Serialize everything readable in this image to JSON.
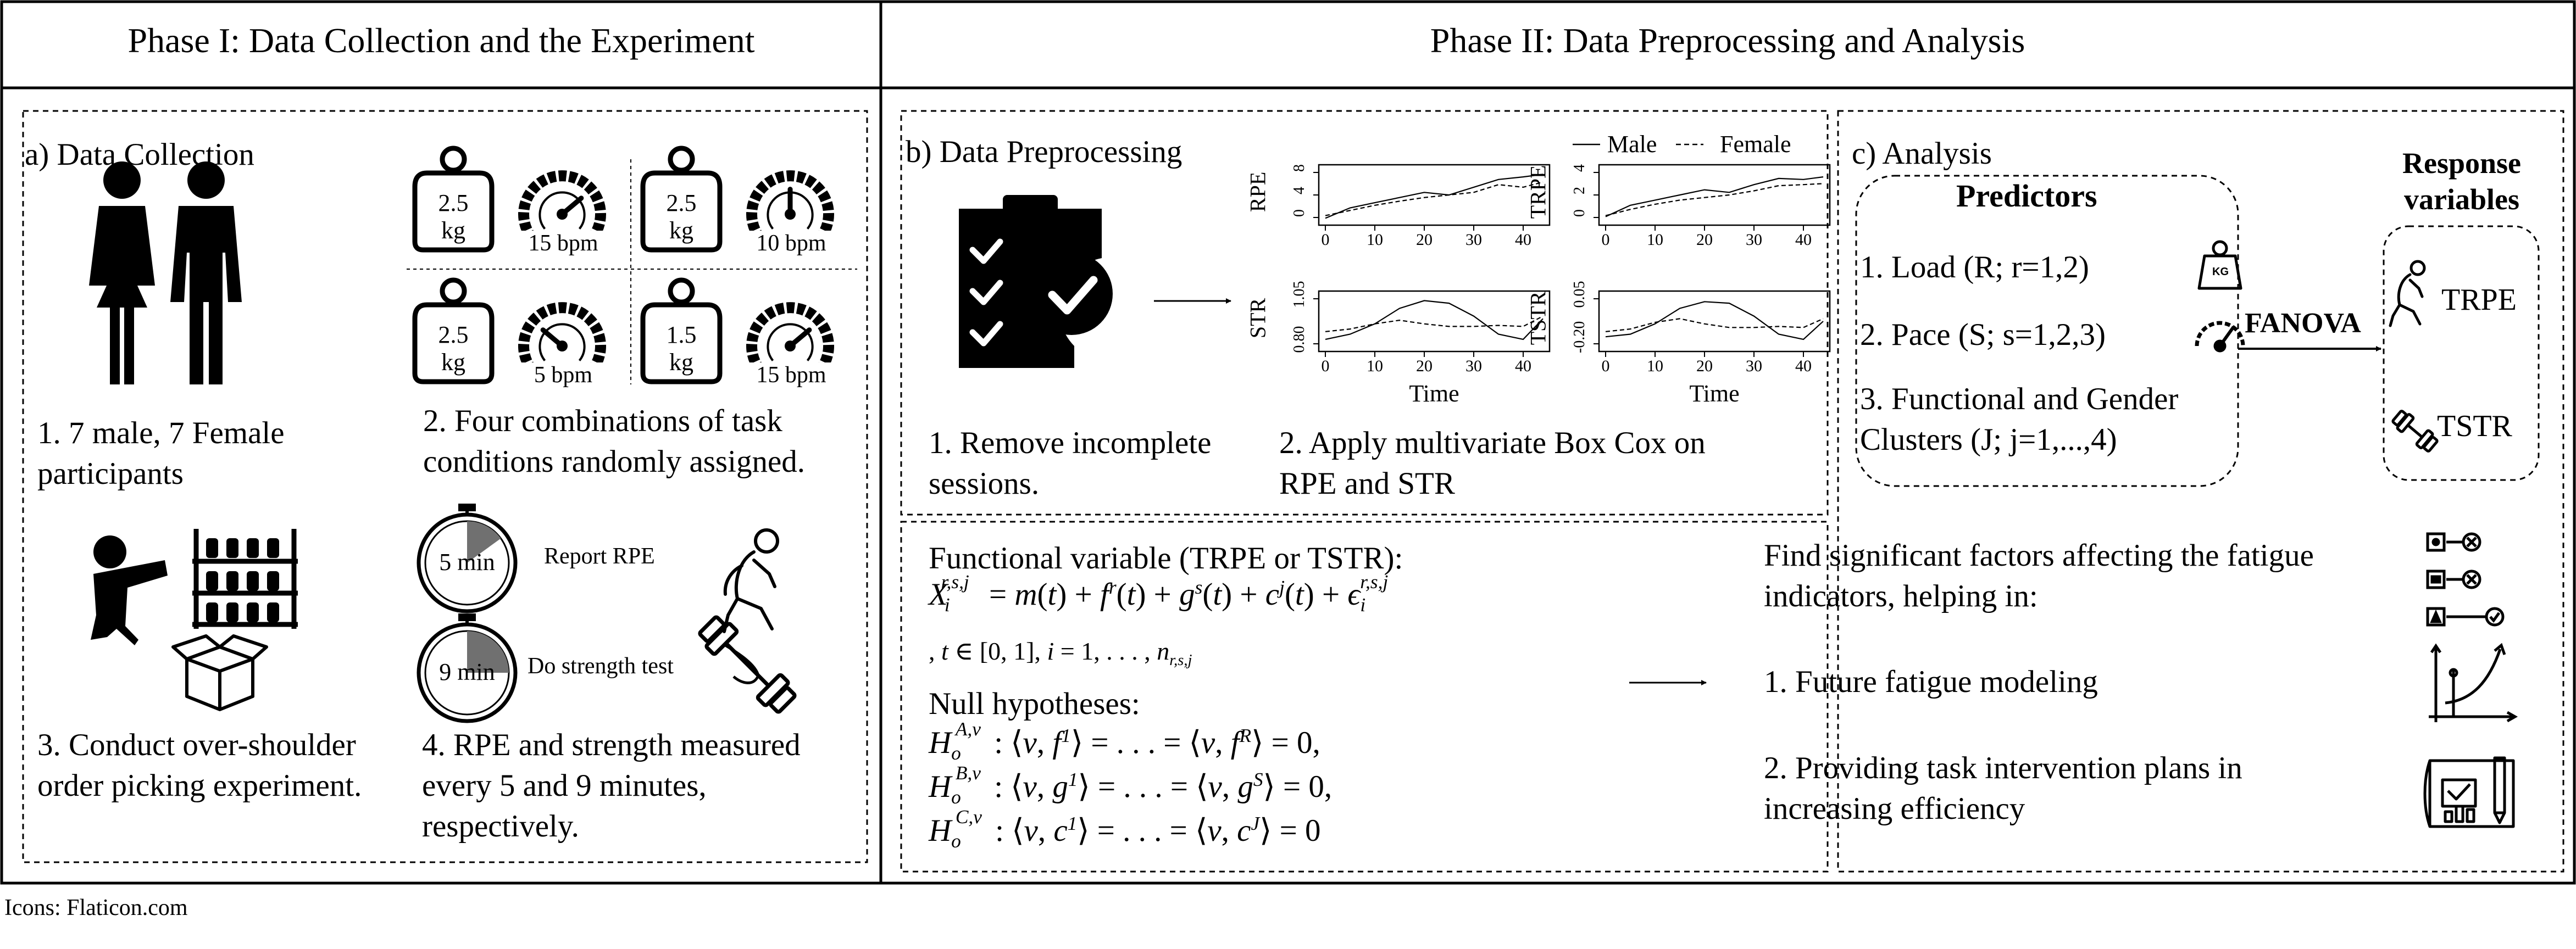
{
  "phase1": {
    "title": "Phase I: Data Collection and the Experiment"
  },
  "phase2": {
    "title": "Phase II: Data Preprocessing and Analysis"
  },
  "data_collection": {
    "heading": "a) Data Collection",
    "step1": "1. 7 male, 7 Female\nparticipants",
    "step2": "2. Four combinations of task\nconditions randomly assigned.",
    "step3": "3. Conduct over-shoulder\norder picking experiment.",
    "step4": "4. RPE and strength measured\nevery 5 and 9 minutes,\nrespectively.",
    "conditions": [
      {
        "weight": "2.5",
        "unit": "kg",
        "pace": "15 bpm",
        "gauge_level": 0.7
      },
      {
        "weight": "2.5",
        "unit": "kg",
        "pace": "10 bpm",
        "gauge_level": 0.5
      },
      {
        "weight": "2.5",
        "unit": "kg",
        "pace": "5 bpm",
        "gauge_level": 0.3
      },
      {
        "weight": "1.5",
        "unit": "kg",
        "pace": "15 bpm",
        "gauge_level": 0.7
      }
    ],
    "timers": [
      {
        "label": "5 min",
        "action": "Report RPE",
        "fill_fraction": 0.15
      },
      {
        "label": "9 min",
        "action": "Do strength test",
        "fill_fraction": 0.25
      }
    ]
  },
  "preprocessing": {
    "heading": "b) Data Preprocessing",
    "step1": "1. Remove incomplete\nsessions.",
    "step2": "2. Apply multivariate Box Cox on\nRPE and STR",
    "legend": [
      "Male",
      "Female"
    ],
    "x_label": "Time"
  },
  "chart_data": [
    {
      "type": "line",
      "ylabel": "RPE",
      "x_ticks": [
        "0",
        "10",
        "20",
        "30",
        "40"
      ],
      "y_ticks": [
        "0",
        "4",
        "8"
      ],
      "legend": [
        "Male",
        "Female"
      ]
    },
    {
      "type": "line",
      "ylabel": "TRPE",
      "x_ticks": [
        "0",
        "10",
        "20",
        "30",
        "40"
      ],
      "y_ticks": [
        "0",
        "2",
        "4"
      ],
      "legend": [
        "Male",
        "Female"
      ]
    },
    {
      "type": "line",
      "ylabel": "STR",
      "xlabel": "Time",
      "x_ticks": [
        "0",
        "10",
        "20",
        "30",
        "40"
      ],
      "y_ticks": [
        "0.80",
        "1.05"
      ],
      "legend": [
        "Male",
        "Female"
      ]
    },
    {
      "type": "line",
      "ylabel": "TSTR",
      "xlabel": "Time",
      "x_ticks": [
        "0",
        "10",
        "20",
        "30",
        "40"
      ],
      "y_ticks": [
        "-0.20",
        "0.05"
      ],
      "legend": [
        "Male",
        "Female"
      ]
    }
  ],
  "analysis": {
    "heading": "c) Analysis",
    "predictors_title": "Predictors",
    "predictors": [
      "1. Load (R; r=1,2)",
      "2. Pace (S; s=1,2,3)",
      "3. Functional and Gender\nClusters (J; j=1,...,4)"
    ],
    "kg_icon_text": "KG",
    "method": "FANOVA",
    "response_title": "Response\nvariables",
    "responses": [
      "TRPE",
      "TSTR"
    ]
  },
  "model": {
    "heading": "Functional variable (TRPE or TSTR):",
    "null_heading": "Null hypotheses:"
  },
  "findings": {
    "intro": "Find significant factors affecting the fatigue\nindicators, helping in:",
    "item1": "1. Future fatigue modeling",
    "item2": "2. Providing task intervention plans in\nincreasing efficiency"
  },
  "credit": "Icons: Flaticon.com"
}
